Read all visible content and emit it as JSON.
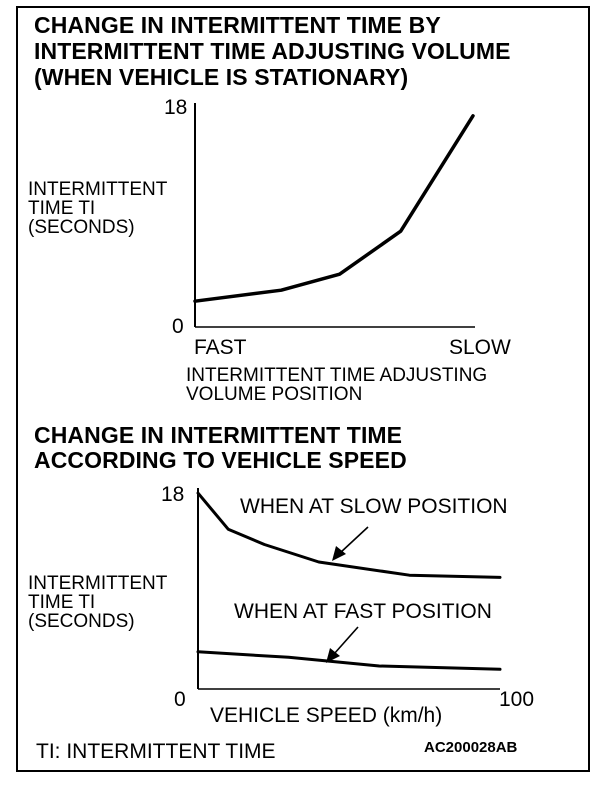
{
  "chart_data": [
    {
      "type": "line",
      "title": [
        "CHANGE IN INTERMITTENT TIME BY",
        "INTERMITTENT TIME ADJUSTING VOLUME",
        "(WHEN VEHICLE IS STATIONARY)"
      ],
      "ylabel": [
        "INTERMITTENT",
        "TIME TI",
        "(SECONDS)"
      ],
      "xlabel": [
        "INTERMITTENT TIME ADJUSTING",
        "VOLUME POSITION"
      ],
      "y_ticks": [
        "0",
        "18"
      ],
      "x_ticks": [
        "FAST",
        "SLOW"
      ],
      "ylim": [
        0,
        18
      ],
      "xlim": [
        0,
        1
      ],
      "series": [
        {
          "x": [
            0,
            0.31,
            0.52,
            0.74,
            1.0
          ],
          "y": [
            2.1,
            3.0,
            4.3,
            7.8,
            17.2
          ]
        }
      ]
    },
    {
      "type": "line",
      "title": [
        "CHANGE IN INTERMITTENT TIME",
        "ACCORDING TO VEHICLE SPEED"
      ],
      "ylabel": [
        "INTERMITTENT",
        "TIME TI",
        "(SECONDS)"
      ],
      "xlabel": "VEHICLE SPEED  (km/h)",
      "y_ticks": [
        "0",
        "18"
      ],
      "x_ticks": [
        "0",
        "100"
      ],
      "ylim": [
        0,
        18
      ],
      "xlim": [
        0,
        100
      ],
      "series": [
        {
          "name": "WHEN AT SLOW POSITION",
          "x": [
            0,
            10,
            22,
            40,
            70,
            100
          ],
          "y": [
            17.9,
            14.6,
            13.2,
            11.6,
            10.4,
            10.2
          ]
        },
        {
          "name": "WHEN AT FAST POSITION",
          "x": [
            0,
            30,
            60,
            100
          ],
          "y": [
            3.4,
            2.9,
            2.1,
            1.8
          ]
        }
      ]
    }
  ],
  "footnote": "TI: INTERMITTENT TIME",
  "figure_code": "AC200028AB"
}
